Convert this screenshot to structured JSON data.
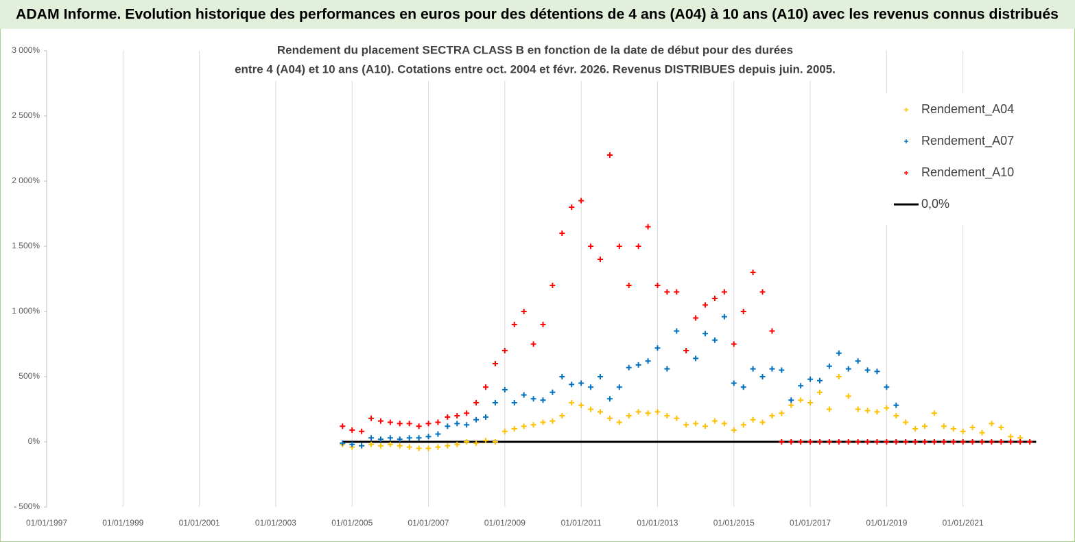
{
  "header": {
    "title": "ADAM Informe. Evolution historique des performances en euros pour des détentions de 4 ans (A04) à 10 ans (A10) avec les revenus connus distribués"
  },
  "chart_data": {
    "type": "scatter",
    "title": "Rendement du placement SECTRA CLASS B en fonction de la date de début pour des durées",
    "subtitle": "entre 4 (A04) et 10 ans (A10). Cotations entre oct. 2004 et févr. 2026. Revenus DISTRIBUES depuis juin. 2005.",
    "xlim": [
      "1997-01-01",
      "2023-01-01"
    ],
    "xticks": [
      {
        "value": "1997-01-01",
        "label": "01/01/1997"
      },
      {
        "value": "1999-01-01",
        "label": "01/01/1999"
      },
      {
        "value": "2001-01-01",
        "label": "01/01/2001"
      },
      {
        "value": "2003-01-01",
        "label": "01/01/2003"
      },
      {
        "value": "2005-01-01",
        "label": "01/01/2005"
      },
      {
        "value": "2007-01-01",
        "label": "01/01/2007"
      },
      {
        "value": "2009-01-01",
        "label": "01/01/2009"
      },
      {
        "value": "2011-01-01",
        "label": "01/01/2011"
      },
      {
        "value": "2013-01-01",
        "label": "01/01/2013"
      },
      {
        "value": "2015-01-01",
        "label": "01/01/2015"
      },
      {
        "value": "2017-01-01",
        "label": "01/01/2017"
      },
      {
        "value": "2019-01-01",
        "label": "01/01/2019"
      },
      {
        "value": "2021-01-01",
        "label": "01/01/2021"
      }
    ],
    "ylim": [
      -500,
      3000
    ],
    "yticks": [
      {
        "value": -500,
        "label": "- 500%"
      },
      {
        "value": 0,
        "label": "0%"
      },
      {
        "value": 500,
        "label": "500%"
      },
      {
        "value": 1000,
        "label": "1 000%"
      },
      {
        "value": 1500,
        "label": "1 500%"
      },
      {
        "value": 2000,
        "label": "2 000%"
      },
      {
        "value": 2500,
        "label": "2 500%"
      },
      {
        "value": 3000,
        "label": "3 000%"
      }
    ],
    "grid": "x",
    "legend": "upper right",
    "series": [
      {
        "name": "Rendement_A04",
        "color": "#ffc000",
        "marker": "+",
        "x": [
          "2004-10-01",
          "2005-01-01",
          "2005-04-01",
          "2005-07-01",
          "2005-10-01",
          "2006-01-01",
          "2006-04-01",
          "2006-07-01",
          "2006-10-01",
          "2007-01-01",
          "2007-04-01",
          "2007-07-01",
          "2007-10-01",
          "2008-01-01",
          "2008-04-01",
          "2008-07-01",
          "2008-10-01",
          "2009-01-01",
          "2009-04-01",
          "2009-07-01",
          "2009-10-01",
          "2010-01-01",
          "2010-04-01",
          "2010-07-01",
          "2010-10-01",
          "2011-01-01",
          "2011-04-01",
          "2011-07-01",
          "2011-10-01",
          "2012-01-01",
          "2012-04-01",
          "2012-07-01",
          "2012-10-01",
          "2013-01-01",
          "2013-04-01",
          "2013-07-01",
          "2013-10-01",
          "2014-01-01",
          "2014-04-01",
          "2014-07-01",
          "2014-10-01",
          "2015-01-01",
          "2015-04-01",
          "2015-07-01",
          "2015-10-01",
          "2016-01-01",
          "2016-04-01",
          "2016-07-01",
          "2016-10-01",
          "2017-01-01",
          "2017-04-01",
          "2017-07-01",
          "2017-10-01",
          "2018-01-01",
          "2018-04-01",
          "2018-07-01",
          "2018-10-01",
          "2019-01-01",
          "2019-04-01",
          "2019-07-01",
          "2019-10-01",
          "2020-01-01",
          "2020-04-01",
          "2020-07-01",
          "2020-10-01",
          "2021-01-01",
          "2021-04-01",
          "2021-07-01",
          "2021-10-01",
          "2022-01-01",
          "2022-04-01",
          "2022-07-01",
          "2022-10-01"
        ],
        "values": [
          -20,
          -40,
          -30,
          -20,
          -30,
          -20,
          -30,
          -40,
          -50,
          -50,
          -40,
          -30,
          -20,
          0,
          -10,
          10,
          0,
          80,
          100,
          120,
          130,
          150,
          160,
          200,
          300,
          280,
          250,
          230,
          180,
          150,
          200,
          230,
          220,
          230,
          200,
          180,
          130,
          140,
          120,
          160,
          140,
          90,
          130,
          170,
          150,
          200,
          220,
          280,
          320,
          300,
          380,
          250,
          500,
          350,
          250,
          240,
          230,
          260,
          200,
          150,
          100,
          120,
          220,
          120,
          100,
          80,
          110,
          70,
          140,
          110,
          40,
          30,
          0
        ]
      },
      {
        "name": "Rendement_A07",
        "color": "#0070c0",
        "marker": "+",
        "x": [
          "2004-10-01",
          "2005-01-01",
          "2005-04-01",
          "2005-07-01",
          "2005-10-01",
          "2006-01-01",
          "2006-04-01",
          "2006-07-01",
          "2006-10-01",
          "2007-01-01",
          "2007-04-01",
          "2007-07-01",
          "2007-10-01",
          "2008-01-01",
          "2008-04-01",
          "2008-07-01",
          "2008-10-01",
          "2009-01-01",
          "2009-04-01",
          "2009-07-01",
          "2009-10-01",
          "2010-01-01",
          "2010-04-01",
          "2010-07-01",
          "2010-10-01",
          "2011-01-01",
          "2011-04-01",
          "2011-07-01",
          "2011-10-01",
          "2012-01-01",
          "2012-04-01",
          "2012-07-01",
          "2012-10-01",
          "2013-01-01",
          "2013-04-01",
          "2013-07-01",
          "2013-10-01",
          "2014-01-01",
          "2014-04-01",
          "2014-07-01",
          "2014-10-01",
          "2015-01-01",
          "2015-04-01",
          "2015-07-01",
          "2015-10-01",
          "2016-01-01",
          "2016-04-01",
          "2016-07-01",
          "2016-10-01",
          "2017-01-01",
          "2017-04-01",
          "2017-07-01",
          "2017-10-01",
          "2018-01-01",
          "2018-04-01",
          "2018-07-01",
          "2018-10-01",
          "2019-01-01",
          "2019-04-01"
        ],
        "values": [
          -10,
          -20,
          -30,
          30,
          20,
          30,
          20,
          30,
          30,
          40,
          60,
          120,
          140,
          130,
          170,
          190,
          300,
          400,
          300,
          360,
          330,
          320,
          380,
          500,
          440,
          450,
          420,
          500,
          330,
          420,
          570,
          590,
          620,
          720,
          560,
          850,
          700,
          640,
          830,
          780,
          960,
          450,
          420,
          560,
          500,
          560,
          550,
          320,
          430,
          480,
          470,
          580,
          680,
          560,
          620,
          550,
          540,
          420,
          280
        ]
      },
      {
        "name": "Rendement_A10",
        "color": "#ff0000",
        "marker": "+",
        "x": [
          "2004-10-01",
          "2005-01-01",
          "2005-04-01",
          "2005-07-01",
          "2005-10-01",
          "2006-01-01",
          "2006-04-01",
          "2006-07-01",
          "2006-10-01",
          "2007-01-01",
          "2007-04-01",
          "2007-07-01",
          "2007-10-01",
          "2008-01-01",
          "2008-04-01",
          "2008-07-01",
          "2008-10-01",
          "2009-01-01",
          "2009-04-01",
          "2009-07-01",
          "2009-10-01",
          "2010-01-01",
          "2010-04-01",
          "2010-07-01",
          "2010-10-01",
          "2011-01-01",
          "2011-04-01",
          "2011-07-01",
          "2011-10-01",
          "2012-01-01",
          "2012-04-01",
          "2012-07-01",
          "2012-10-01",
          "2013-01-01",
          "2013-04-01",
          "2013-07-01",
          "2013-10-01",
          "2014-01-01",
          "2014-04-01",
          "2014-07-01",
          "2014-10-01",
          "2015-01-01",
          "2015-04-01",
          "2015-07-01",
          "2015-10-01",
          "2016-01-01",
          "2016-04-01",
          "2016-07-01",
          "2016-10-01",
          "2017-01-01",
          "2017-04-01",
          "2017-07-01",
          "2017-10-01",
          "2018-01-01",
          "2018-04-01",
          "2018-07-01",
          "2018-10-01",
          "2019-01-01",
          "2019-04-01",
          "2019-07-01",
          "2019-10-01",
          "2020-01-01",
          "2020-04-01",
          "2020-07-01",
          "2020-10-01",
          "2021-01-01",
          "2021-04-01",
          "2021-07-01",
          "2021-10-01",
          "2022-01-01",
          "2022-04-01",
          "2022-07-01",
          "2022-10-01"
        ],
        "values": [
          120,
          90,
          80,
          180,
          160,
          150,
          140,
          140,
          120,
          140,
          150,
          190,
          200,
          220,
          300,
          420,
          600,
          700,
          900,
          1000,
          750,
          900,
          1200,
          1600,
          1800,
          1850,
          1500,
          1400,
          2200,
          1500,
          1200,
          1500,
          1650,
          1200,
          1150,
          1150,
          700,
          950,
          1050,
          1100,
          1150,
          750,
          1000,
          1300,
          1150,
          850,
          0,
          0,
          0,
          0,
          0,
          0,
          0,
          0,
          0,
          0,
          0,
          0,
          0,
          0,
          0,
          0,
          0,
          0,
          0,
          0,
          0,
          0,
          0,
          0,
          0,
          0,
          0
        ]
      },
      {
        "name": "0,0%",
        "color": "#000000",
        "marker": "line",
        "x": [
          "2004-10-01",
          "2022-12-01"
        ],
        "values": [
          0,
          0
        ]
      }
    ]
  }
}
